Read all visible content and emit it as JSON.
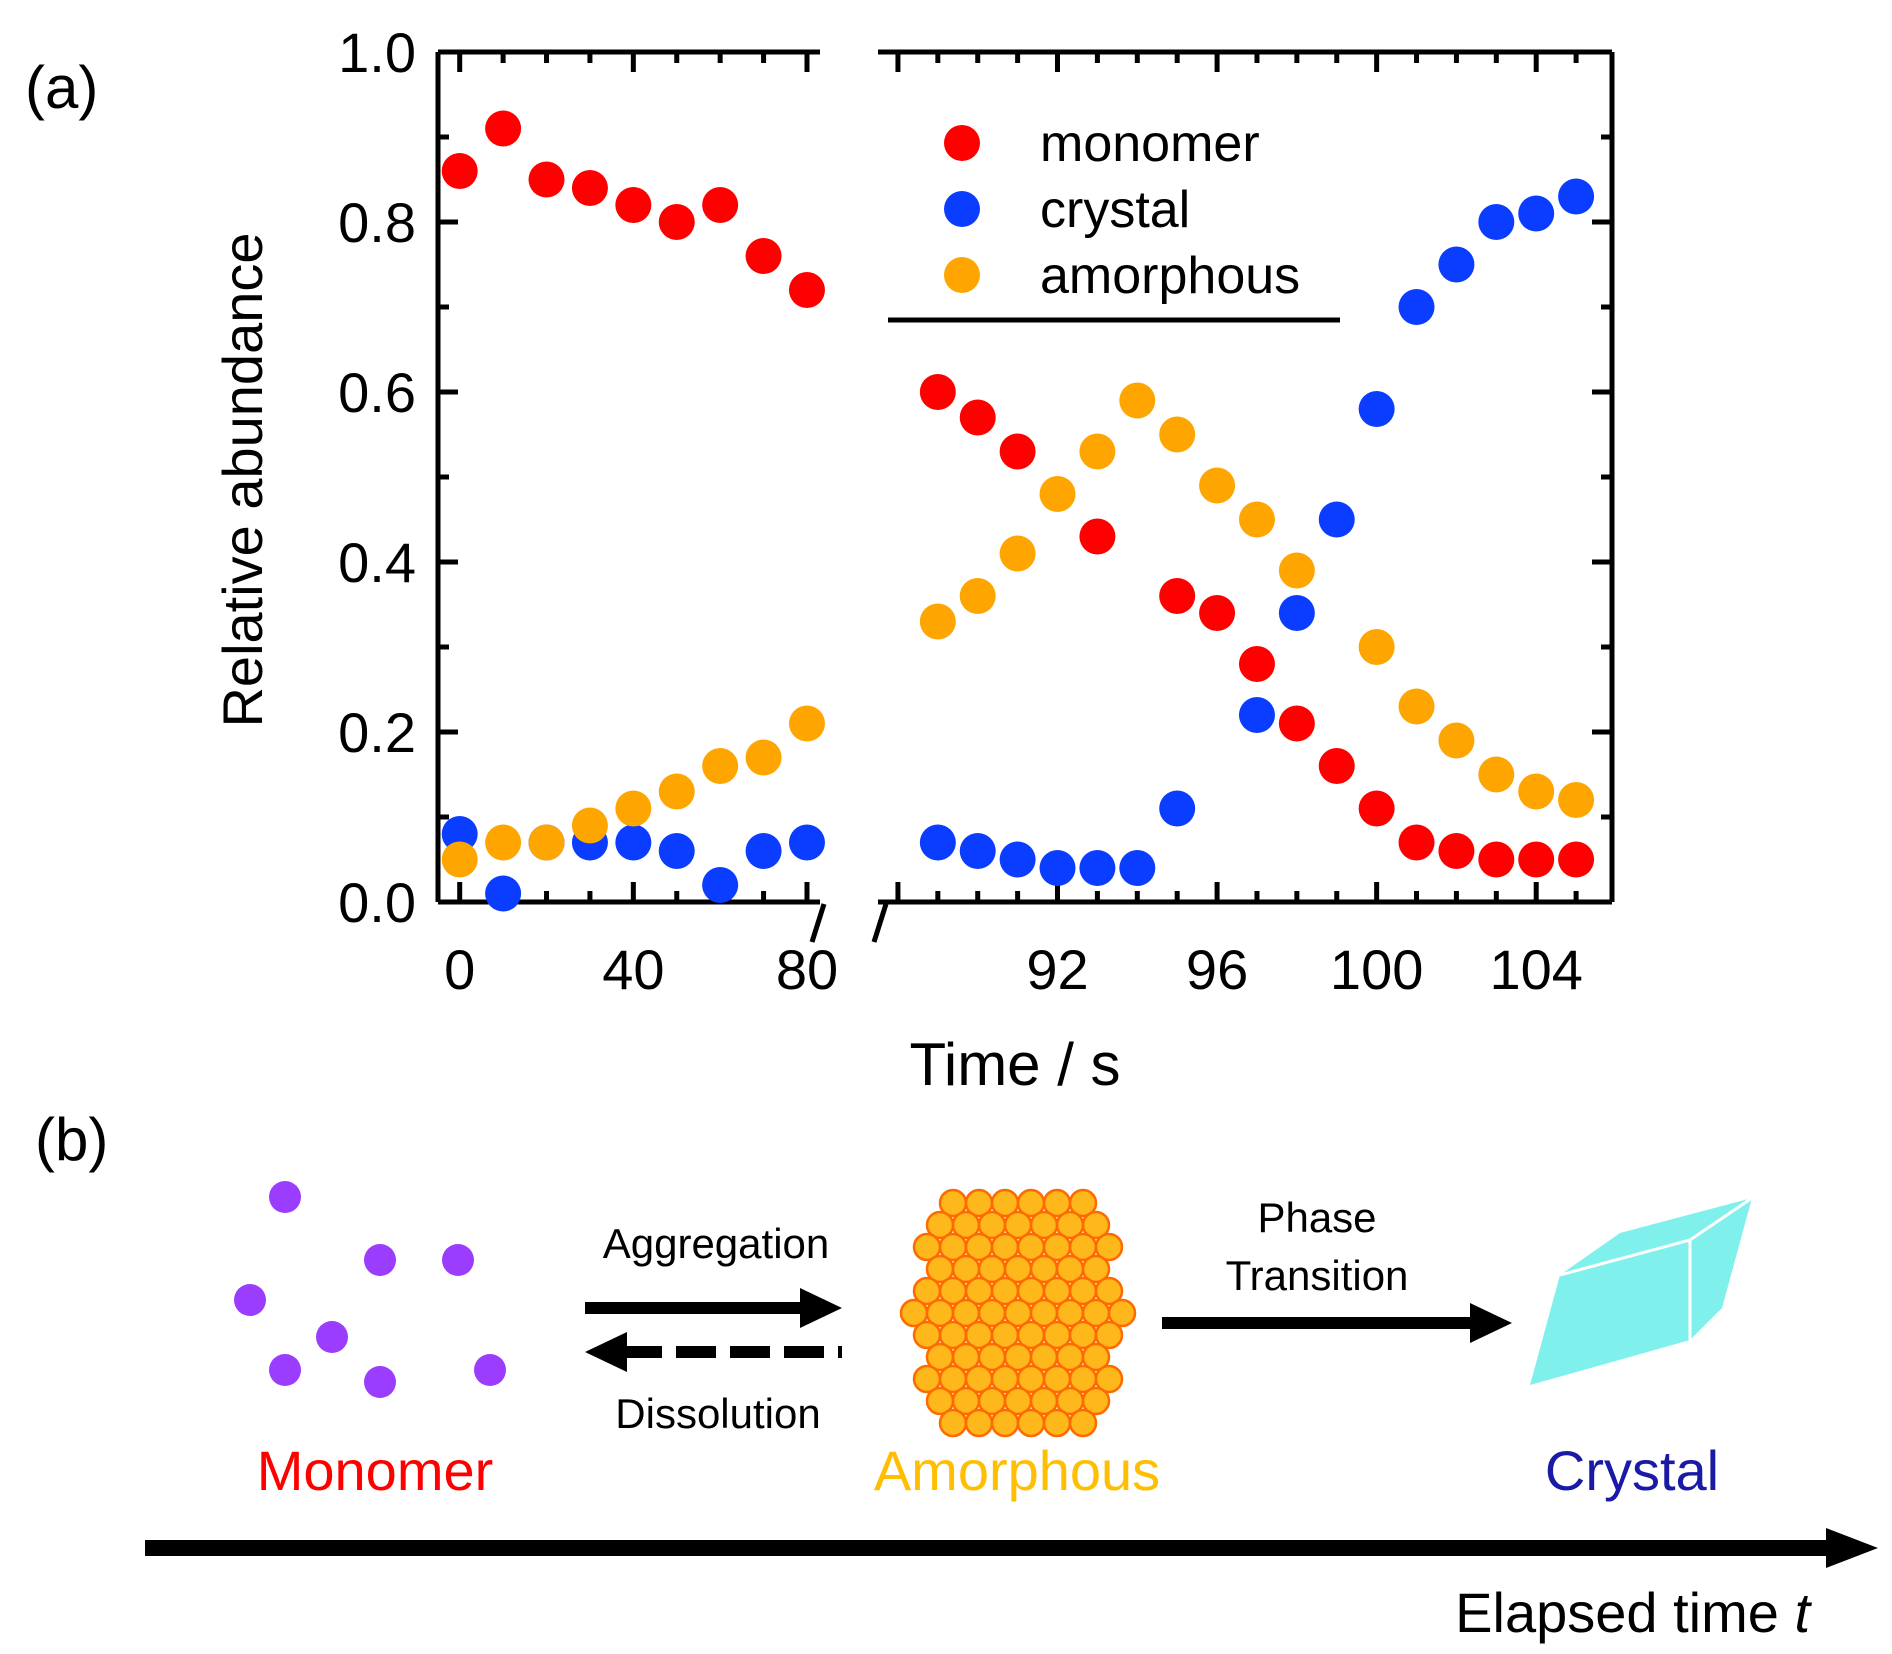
{
  "panel_a": {
    "label": "(a)"
  },
  "panel_b": {
    "label": "(b)",
    "monomer_label": "Monomer",
    "amorphous_label": "Amorphous",
    "crystal_label": "Crystal",
    "aggregation_label": "Aggregation",
    "dissolution_label": "Dissolution",
    "phase_transition_line1": "Phase",
    "phase_transition_line2": "Transition",
    "elapsed_label": "Elapsed time ",
    "elapsed_var": "t",
    "colors": {
      "monomer_dot": "#9b3dff",
      "amorphous_fill": "#ffb81c",
      "amorphous_edge": "#ff6a00",
      "crystal": "#80f0ec",
      "monomer_text": "#ff0000",
      "amorphous_text": "#ffbf00",
      "crystal_text": "#1a1aa6"
    }
  },
  "chart_data": {
    "type": "scatter",
    "title": "",
    "xlabel": "Time / s",
    "ylabel": "Relative abundance",
    "ylim": [
      0,
      1.0
    ],
    "yticks": [
      "0.0",
      "0.2",
      "0.4",
      "0.6",
      "0.8",
      "1.0"
    ],
    "broken_x_axis": true,
    "segments": [
      {
        "xlim": [
          -5,
          83
        ],
        "ticks": [
          0,
          40,
          80
        ],
        "tick_labels": [
          "0",
          "40",
          "80"
        ]
      },
      {
        "xlim": [
          87.5,
          105.9
        ],
        "ticks": [
          92,
          96,
          100,
          104
        ],
        "tick_labels": [
          "92",
          "96",
          "100",
          "104"
        ]
      }
    ],
    "legend_position": "top-center",
    "series": [
      {
        "name": "monomer",
        "color": "#ff0000",
        "points": [
          [
            0,
            0.86
          ],
          [
            10,
            0.91
          ],
          [
            20,
            0.85
          ],
          [
            30,
            0.84
          ],
          [
            40,
            0.82
          ],
          [
            50,
            0.8
          ],
          [
            60,
            0.82
          ],
          [
            70,
            0.76
          ],
          [
            80,
            0.72
          ],
          [
            89,
            0.6
          ],
          [
            90,
            0.57
          ],
          [
            91,
            0.53
          ],
          [
            93,
            0.43
          ],
          [
            95,
            0.36
          ],
          [
            96,
            0.34
          ],
          [
            97,
            0.28
          ],
          [
            98,
            0.21
          ],
          [
            99,
            0.16
          ],
          [
            100,
            0.11
          ],
          [
            101,
            0.07
          ],
          [
            102,
            0.06
          ],
          [
            103,
            0.05
          ],
          [
            104,
            0.05
          ],
          [
            105,
            0.05
          ]
        ]
      },
      {
        "name": "crystal",
        "color": "#0a3dff",
        "points": [
          [
            0,
            0.08
          ],
          [
            10,
            0.01
          ],
          [
            20,
            0.07
          ],
          [
            30,
            0.07
          ],
          [
            40,
            0.07
          ],
          [
            50,
            0.06
          ],
          [
            60,
            0.02
          ],
          [
            70,
            0.06
          ],
          [
            80,
            0.07
          ],
          [
            89,
            0.07
          ],
          [
            90,
            0.06
          ],
          [
            91,
            0.05
          ],
          [
            92,
            0.04
          ],
          [
            93,
            0.04
          ],
          [
            94,
            0.04
          ],
          [
            95,
            0.11
          ],
          [
            97,
            0.22
          ],
          [
            98,
            0.34
          ],
          [
            99,
            0.45
          ],
          [
            100,
            0.58
          ],
          [
            101,
            0.7
          ],
          [
            102,
            0.75
          ],
          [
            103,
            0.8
          ],
          [
            104,
            0.81
          ],
          [
            105,
            0.83
          ]
        ]
      },
      {
        "name": "amorphous",
        "color": "#ffa500",
        "points": [
          [
            0,
            0.05
          ],
          [
            10,
            0.07
          ],
          [
            20,
            0.07
          ],
          [
            30,
            0.09
          ],
          [
            40,
            0.11
          ],
          [
            50,
            0.13
          ],
          [
            60,
            0.16
          ],
          [
            70,
            0.17
          ],
          [
            80,
            0.21
          ],
          [
            89,
            0.33
          ],
          [
            90,
            0.36
          ],
          [
            91,
            0.41
          ],
          [
            92,
            0.48
          ],
          [
            93,
            0.53
          ],
          [
            94,
            0.59
          ],
          [
            95,
            0.55
          ],
          [
            96,
            0.49
          ],
          [
            97,
            0.45
          ],
          [
            98,
            0.39
          ],
          [
            100,
            0.3
          ],
          [
            101,
            0.23
          ],
          [
            102,
            0.19
          ],
          [
            103,
            0.15
          ],
          [
            104,
            0.13
          ],
          [
            105,
            0.12
          ]
        ]
      }
    ]
  }
}
